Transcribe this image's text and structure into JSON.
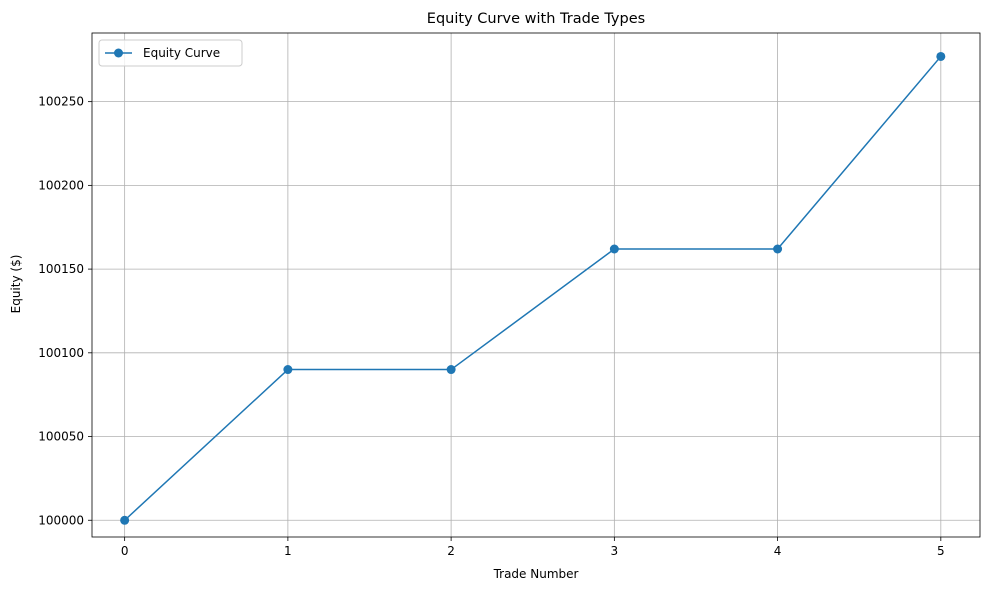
{
  "chart_data": {
    "type": "line",
    "title": "Equity Curve with Trade Types",
    "xlabel": "Trade Number",
    "ylabel": "Equity ($)",
    "x": [
      0,
      1,
      2,
      3,
      4,
      5
    ],
    "series": [
      {
        "name": "Equity Curve",
        "values": [
          100000,
          100090,
          100090,
          100162,
          100162,
          100277
        ],
        "color": "#1f77b4",
        "marker": "circle"
      }
    ],
    "xticks": [
      "0",
      "1",
      "2",
      "3",
      "4",
      "5"
    ],
    "yticks": [
      "100000",
      "100050",
      "100100",
      "100150",
      "100200",
      "100250"
    ],
    "xlim": [
      -0.2,
      5.24
    ],
    "ylim": [
      99990,
      100291
    ],
    "grid": true,
    "legend_position": "top-left",
    "colors": {
      "grid": "#b0b0b0",
      "axes": "#000000",
      "background": "#ffffff"
    }
  }
}
